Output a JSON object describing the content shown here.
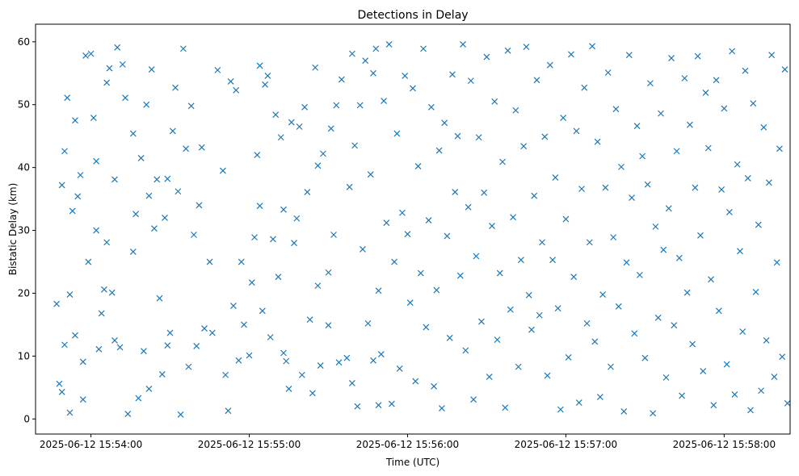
{
  "chart_data": {
    "type": "scatter",
    "title": "Detections in Delay",
    "xlabel": "Time (UTC)",
    "ylabel": "Bistatic Delay (km)",
    "x_unit": "seconds after 2025-06-12 15:54:00 UTC",
    "xlim": [
      -21,
      265
    ],
    "ylim": [
      -2.4,
      62.8
    ],
    "grid": false,
    "marker": "x",
    "color": "#1f77b4",
    "xticks": [
      {
        "value": 0,
        "label": "2025-06-12 15:54:00"
      },
      {
        "value": 60,
        "label": "2025-06-12 15:55:00"
      },
      {
        "value": 120,
        "label": "2025-06-12 15:56:00"
      },
      {
        "value": 180,
        "label": "2025-06-12 15:57:00"
      },
      {
        "value": 240,
        "label": "2025-06-12 15:58:00"
      }
    ],
    "yticks": [
      {
        "value": 0,
        "label": "0"
      },
      {
        "value": 10,
        "label": "10"
      },
      {
        "value": 20,
        "label": "20"
      },
      {
        "value": 30,
        "label": "30"
      },
      {
        "value": 40,
        "label": "40"
      },
      {
        "value": 50,
        "label": "50"
      },
      {
        "value": 60,
        "label": "60"
      }
    ],
    "points": [
      [
        -13,
        18.3
      ],
      [
        -12,
        5.6
      ],
      [
        -11,
        4.3
      ],
      [
        -11,
        37.2
      ],
      [
        -10,
        42.6
      ],
      [
        -10,
        11.8
      ],
      [
        -9,
        51.1
      ],
      [
        -8,
        19.8
      ],
      [
        -8,
        1
      ],
      [
        -7,
        33.1
      ],
      [
        -6,
        47.5
      ],
      [
        -6,
        13.3
      ],
      [
        -5,
        35.4
      ],
      [
        -4,
        38.8
      ],
      [
        -3,
        9.1
      ],
      [
        -3,
        3.1
      ],
      [
        -2,
        57.8
      ],
      [
        -1,
        25
      ],
      [
        0,
        58.1
      ],
      [
        1,
        47.9
      ],
      [
        2,
        41
      ],
      [
        2,
        30
      ],
      [
        3,
        11.1
      ],
      [
        4,
        16.8
      ],
      [
        5,
        20.6
      ],
      [
        6,
        28.1
      ],
      [
        6,
        53.5
      ],
      [
        7,
        55.8
      ],
      [
        8,
        20.1
      ],
      [
        9,
        12.5
      ],
      [
        9,
        38.1
      ],
      [
        10,
        59.1
      ],
      [
        11,
        11.4
      ],
      [
        12,
        56.4
      ],
      [
        13,
        51.1
      ],
      [
        14,
        0.8
      ],
      [
        16,
        45.4
      ],
      [
        16,
        26.6
      ],
      [
        17,
        32.6
      ],
      [
        18,
        3.3
      ],
      [
        19,
        41.5
      ],
      [
        20,
        10.8
      ],
      [
        21,
        50
      ],
      [
        22,
        35.5
      ],
      [
        22,
        4.8
      ],
      [
        23,
        55.6
      ],
      [
        24,
        30.3
      ],
      [
        25,
        38.1
      ],
      [
        26,
        19.2
      ],
      [
        27,
        7.1
      ],
      [
        28,
        32
      ],
      [
        29,
        11.7
      ],
      [
        29,
        38.2
      ],
      [
        30,
        13.7
      ],
      [
        31,
        45.8
      ],
      [
        32,
        52.7
      ],
      [
        33,
        36.2
      ],
      [
        34,
        0.7
      ],
      [
        35,
        58.9
      ],
      [
        36,
        43
      ],
      [
        37,
        8.3
      ],
      [
        38,
        49.8
      ],
      [
        39,
        29.3
      ],
      [
        40,
        11.6
      ],
      [
        41,
        34
      ],
      [
        42,
        43.2
      ],
      [
        43,
        14.4
      ],
      [
        45,
        25
      ],
      [
        46,
        13.7
      ],
      [
        48,
        55.5
      ],
      [
        50,
        39.5
      ],
      [
        51,
        7
      ],
      [
        52,
        1.3
      ],
      [
        53,
        53.7
      ],
      [
        54,
        18
      ],
      [
        55,
        52.3
      ],
      [
        56,
        9.3
      ],
      [
        57,
        25
      ],
      [
        58,
        15
      ],
      [
        60,
        10.1
      ],
      [
        61,
        21.7
      ],
      [
        62,
        28.9
      ],
      [
        63,
        42
      ],
      [
        64,
        56.2
      ],
      [
        64,
        33.9
      ],
      [
        65,
        17.2
      ],
      [
        66,
        53.2
      ],
      [
        67,
        54.6
      ],
      [
        68,
        13
      ],
      [
        69,
        28.6
      ],
      [
        70,
        48.4
      ],
      [
        71,
        22.6
      ],
      [
        72,
        44.8
      ],
      [
        73,
        10.5
      ],
      [
        73,
        33.3
      ],
      [
        74,
        9.2
      ],
      [
        75,
        4.8
      ],
      [
        76,
        47.2
      ],
      [
        77,
        28
      ],
      [
        78,
        31.9
      ],
      [
        79,
        46.5
      ],
      [
        80,
        7
      ],
      [
        81,
        49.6
      ],
      [
        82,
        36.1
      ],
      [
        83,
        15.8
      ],
      [
        84,
        4.1
      ],
      [
        85,
        55.9
      ],
      [
        86,
        21.2
      ],
      [
        86,
        40.3
      ],
      [
        87,
        8.5
      ],
      [
        88,
        42.2
      ],
      [
        90,
        23.3
      ],
      [
        90,
        14.9
      ],
      [
        91,
        46.2
      ],
      [
        92,
        29.3
      ],
      [
        93,
        49.9
      ],
      [
        94,
        9
      ],
      [
        95,
        54
      ],
      [
        97,
        9.7
      ],
      [
        98,
        36.9
      ],
      [
        99,
        5.7
      ],
      [
        99,
        58.1
      ],
      [
        100,
        43.5
      ],
      [
        101,
        2
      ],
      [
        102,
        49.9
      ],
      [
        103,
        27
      ],
      [
        104,
        57
      ],
      [
        105,
        15.2
      ],
      [
        106,
        38.9
      ],
      [
        107,
        9.3
      ],
      [
        107,
        55
      ],
      [
        108,
        58.9
      ],
      [
        109,
        20.4
      ],
      [
        109,
        2.2
      ],
      [
        110,
        10.3
      ],
      [
        111,
        50.6
      ],
      [
        112,
        31.2
      ],
      [
        113,
        59.6
      ],
      [
        114,
        2.4
      ],
      [
        115,
        25
      ],
      [
        116,
        45.4
      ],
      [
        117,
        8
      ],
      [
        118,
        32.8
      ],
      [
        119,
        54.6
      ],
      [
        120,
        29.4
      ],
      [
        121,
        18.5
      ],
      [
        122,
        52.6
      ],
      [
        123,
        6
      ],
      [
        124,
        40.2
      ],
      [
        125,
        23.2
      ],
      [
        126,
        58.9
      ],
      [
        127,
        14.6
      ],
      [
        128,
        31.6
      ],
      [
        129,
        49.6
      ],
      [
        130,
        5.2
      ],
      [
        131,
        20.5
      ],
      [
        132,
        42.7
      ],
      [
        133,
        1.7
      ],
      [
        134,
        47.1
      ],
      [
        135,
        29.1
      ],
      [
        136,
        12.9
      ],
      [
        137,
        54.8
      ],
      [
        138,
        36.1
      ],
      [
        139,
        45
      ],
      [
        140,
        22.8
      ],
      [
        141,
        59.6
      ],
      [
        142,
        10.9
      ],
      [
        143,
        33.7
      ],
      [
        144,
        53.8
      ],
      [
        145,
        3.1
      ],
      [
        146,
        25.9
      ],
      [
        147,
        44.8
      ],
      [
        148,
        15.5
      ],
      [
        149,
        36
      ],
      [
        150,
        57.6
      ],
      [
        151,
        6.7
      ],
      [
        152,
        30.7
      ],
      [
        153,
        50.5
      ],
      [
        154,
        12.6
      ],
      [
        155,
        23.2
      ],
      [
        156,
        40.9
      ],
      [
        157,
        1.8
      ],
      [
        158,
        58.6
      ],
      [
        159,
        17.4
      ],
      [
        160,
        32.1
      ],
      [
        161,
        49.1
      ],
      [
        162,
        8.3
      ],
      [
        163,
        25.3
      ],
      [
        164,
        43.4
      ],
      [
        165,
        59.2
      ],
      [
        166,
        19.7
      ],
      [
        167,
        14.2
      ],
      [
        168,
        35.5
      ],
      [
        169,
        53.9
      ],
      [
        170,
        16.5
      ],
      [
        171,
        28.1
      ],
      [
        172,
        44.9
      ],
      [
        173,
        6.9
      ],
      [
        174,
        56.3
      ],
      [
        175,
        25.3
      ],
      [
        176,
        38.4
      ],
      [
        177,
        17.6
      ],
      [
        178,
        1.5
      ],
      [
        179,
        47.9
      ],
      [
        180,
        31.8
      ],
      [
        181,
        9.8
      ],
      [
        182,
        58
      ],
      [
        183,
        22.6
      ],
      [
        184,
        45.8
      ],
      [
        185,
        2.6
      ],
      [
        186,
        36.6
      ],
      [
        187,
        52.7
      ],
      [
        188,
        15.2
      ],
      [
        189,
        28.1
      ],
      [
        190,
        59.3
      ],
      [
        191,
        12.3
      ],
      [
        192,
        44.1
      ],
      [
        193,
        3.5
      ],
      [
        194,
        19.8
      ],
      [
        195,
        36.8
      ],
      [
        196,
        55.1
      ],
      [
        197,
        8.3
      ],
      [
        198,
        28.9
      ],
      [
        199,
        49.3
      ],
      [
        200,
        17.9
      ],
      [
        201,
        40.1
      ],
      [
        202,
        1.2
      ],
      [
        203,
        24.9
      ],
      [
        204,
        57.9
      ],
      [
        205,
        35.2
      ],
      [
        206,
        13.6
      ],
      [
        207,
        46.6
      ],
      [
        208,
        22.9
      ],
      [
        209,
        41.8
      ],
      [
        210,
        9.7
      ],
      [
        211,
        37.3
      ],
      [
        212,
        53.4
      ],
      [
        213,
        0.9
      ],
      [
        214,
        30.6
      ],
      [
        215,
        16.1
      ],
      [
        216,
        48.6
      ],
      [
        217,
        26.9
      ],
      [
        218,
        6.6
      ],
      [
        219,
        33.5
      ],
      [
        220,
        57.4
      ],
      [
        221,
        14.9
      ],
      [
        222,
        42.6
      ],
      [
        223,
        25.6
      ],
      [
        224,
        3.7
      ],
      [
        225,
        54.2
      ],
      [
        226,
        20.1
      ],
      [
        227,
        46.8
      ],
      [
        228,
        11.9
      ],
      [
        229,
        36.8
      ],
      [
        230,
        57.7
      ],
      [
        231,
        29.2
      ],
      [
        232,
        7.6
      ],
      [
        233,
        51.9
      ],
      [
        234,
        43.1
      ],
      [
        235,
        22.2
      ],
      [
        236,
        2.2
      ],
      [
        237,
        53.9
      ],
      [
        238,
        17.2
      ],
      [
        239,
        36.5
      ],
      [
        240,
        49.4
      ],
      [
        241,
        8.7
      ],
      [
        242,
        32.9
      ],
      [
        243,
        58.5
      ],
      [
        244,
        3.9
      ],
      [
        245,
        40.5
      ],
      [
        246,
        26.7
      ],
      [
        247,
        13.9
      ],
      [
        248,
        55.4
      ],
      [
        249,
        38.3
      ],
      [
        250,
        1.4
      ],
      [
        251,
        50.2
      ],
      [
        252,
        20.2
      ],
      [
        253,
        30.9
      ],
      [
        254,
        4.5
      ],
      [
        255,
        46.4
      ],
      [
        256,
        12.5
      ],
      [
        257,
        37.6
      ],
      [
        258,
        57.9
      ],
      [
        259,
        6.7
      ],
      [
        260,
        24.9
      ],
      [
        261,
        43
      ],
      [
        262,
        9.9
      ],
      [
        263,
        55.6
      ],
      [
        264,
        2.5
      ]
    ]
  }
}
